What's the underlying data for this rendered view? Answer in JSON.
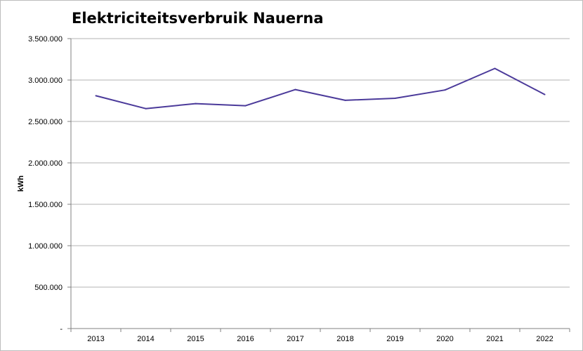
{
  "chart_data": {
    "type": "line",
    "title": "Elektriciteitsverbruik Nauerna",
    "xlabel": "",
    "ylabel": "kWh",
    "categories": [
      "2013",
      "2014",
      "2015",
      "2016",
      "2017",
      "2018",
      "2019",
      "2020",
      "2021",
      "2022"
    ],
    "series": [
      {
        "values": [
          2810000,
          2655000,
          2715000,
          2690000,
          2885000,
          2755000,
          2780000,
          2880000,
          3140000,
          2825000
        ]
      }
    ],
    "ylim": [
      0,
      3500000
    ],
    "yticks": [
      0,
      500000,
      1000000,
      1500000,
      2000000,
      2500000,
      3000000,
      3500000
    ],
    "ytick_labels": [
      "-",
      "500.000",
      "1.000.000",
      "1.500.000",
      "2.000.000",
      "2.500.000",
      "3.000.000",
      "3.500.000"
    ],
    "grid": true,
    "legend": "none",
    "line_color": "#4b3a9a",
    "grid_color": "#b3b3b3"
  }
}
